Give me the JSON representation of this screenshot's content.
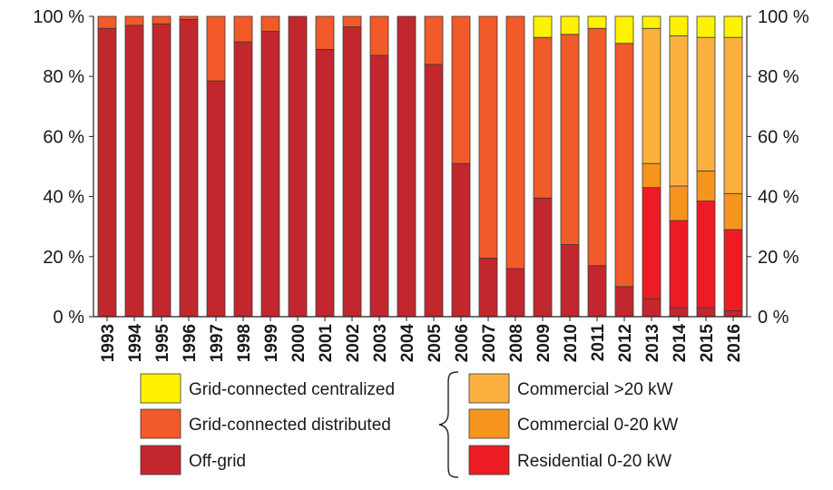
{
  "chart_data": {
    "type": "stacked-bar-100",
    "title": "",
    "xlabel": "",
    "ylabel": "",
    "ylim": [
      0,
      100
    ],
    "yticks": [
      "0 %",
      "20 %",
      "40 %",
      "60 %",
      "80 %",
      "100 %"
    ],
    "ytick_values": [
      0,
      20,
      40,
      60,
      80,
      100
    ],
    "categories": [
      "1993",
      "1994",
      "1995",
      "1996",
      "1997",
      "1998",
      "1999",
      "2000",
      "2001",
      "2002",
      "2003",
      "2004",
      "2005",
      "2006",
      "2007",
      "2008",
      "2009",
      "2010",
      "2011",
      "2012",
      "2013",
      "2014",
      "2015",
      "2016"
    ],
    "series": [
      {
        "name": "Off-grid",
        "color": "#c1272d",
        "values": [
          96,
          97,
          97.5,
          99,
          78.5,
          91.5,
          95,
          100,
          89,
          96.5,
          87,
          100,
          84,
          51,
          19.5,
          16,
          39.5,
          24,
          17,
          10,
          6,
          3,
          3,
          2
        ]
      },
      {
        "name": "Residential 0-20 kW",
        "color": "#ed1c24",
        "values": [
          0,
          0,
          0,
          0,
          0,
          0,
          0,
          0,
          0,
          0,
          0,
          0,
          0,
          0,
          0,
          0,
          0,
          0,
          0,
          0,
          37,
          29,
          35.5,
          27
        ]
      },
      {
        "name": "Commercial 0-20 kW",
        "color": "#f7941d",
        "values": [
          0,
          0,
          0,
          0,
          0,
          0,
          0,
          0,
          0,
          0,
          0,
          0,
          0,
          0,
          0,
          0,
          0,
          0,
          0,
          0,
          8,
          11.5,
          10,
          12
        ]
      },
      {
        "name": "Commercial >20 kW",
        "color": "#fbb040",
        "values": [
          0,
          0,
          0,
          0,
          0,
          0,
          0,
          0,
          0,
          0,
          0,
          0,
          0,
          0,
          0,
          0,
          0,
          0,
          0,
          0,
          45,
          50,
          44.5,
          52
        ]
      },
      {
        "name": "Grid-connected distributed",
        "color": "#f15a29",
        "values": [
          4,
          3,
          2.5,
          1,
          21.5,
          8.5,
          5,
          0,
          11,
          3.5,
          13,
          0,
          16,
          49,
          80.5,
          84,
          53.5,
          70,
          79,
          81,
          0,
          0,
          0,
          0
        ]
      },
      {
        "name": "Grid-connected centralized",
        "color": "#fff200",
        "values": [
          0,
          0,
          0,
          0,
          0,
          0,
          0,
          0,
          0,
          0,
          0,
          0,
          0,
          0,
          0,
          0,
          7,
          6,
          4,
          9,
          4,
          6.5,
          7,
          7
        ]
      }
    ],
    "legend_left": [
      {
        "label": "Grid-connected centralized",
        "color": "#fff200"
      },
      {
        "label": "Grid-connected distributed",
        "color": "#f15a29"
      },
      {
        "label": "Off-grid",
        "color": "#c1272d"
      }
    ],
    "legend_right": [
      {
        "label": "Commercial >20 kW",
        "color": "#fbb040"
      },
      {
        "label": "Commercial 0-20 kW",
        "color": "#f7941d"
      },
      {
        "label": "Residential 0-20 kW",
        "color": "#ed1c24"
      }
    ],
    "legend_placement": "bottom"
  }
}
